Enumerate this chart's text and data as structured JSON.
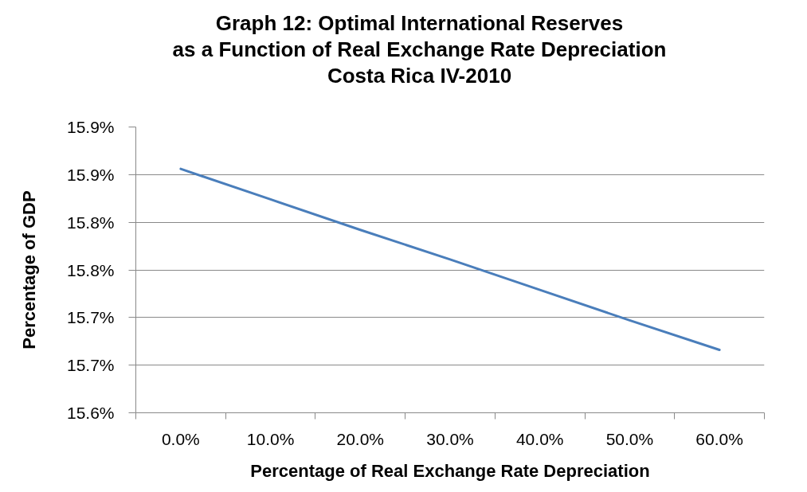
{
  "chart_data": {
    "type": "line",
    "title": "Graph 12: Optimal International Reserves\nas a Function of Real Exchange Rate Depreciation\nCosta Rica IV-2010",
    "xlabel": "Percentage of Real Exchange Rate Depreciation",
    "ylabel": "Percentage of GDP",
    "categories": [
      "0.0%",
      "10.0%",
      "20.0%",
      "30.0%",
      "40.0%",
      "50.0%",
      "60.0%"
    ],
    "series": [
      {
        "color": "#4a7ebb",
        "values": [
          15.856,
          15.824,
          15.792,
          15.761,
          15.729,
          15.697,
          15.666
        ]
      }
    ],
    "ylim": [
      15.6,
      15.9
    ],
    "yticks": [
      {
        "value": 15.6,
        "label": "15.6%"
      },
      {
        "value": 15.65,
        "label": "15.7%"
      },
      {
        "value": 15.7,
        "label": "15.7%"
      },
      {
        "value": 15.75,
        "label": "15.8%"
      },
      {
        "value": 15.8,
        "label": "15.8%"
      },
      {
        "value": 15.85,
        "label": "15.9%"
      },
      {
        "value": 15.9,
        "label": "15.9%"
      }
    ],
    "grid": "y",
    "marker": "none",
    "line_style": "solid"
  }
}
